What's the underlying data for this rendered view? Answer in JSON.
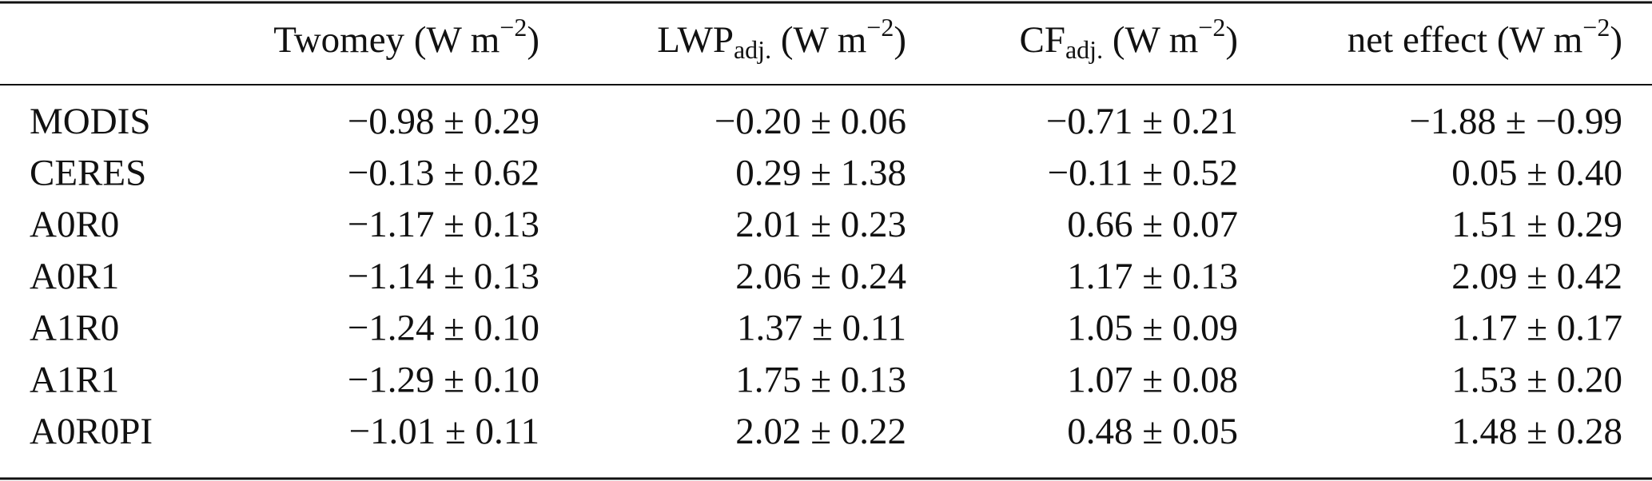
{
  "table": {
    "header": [
      {
        "main": "Twomey",
        "unit": " (W m",
        "sup": "−2",
        "close": ")"
      },
      {
        "main": "LWP",
        "sub": "adj.",
        "unit": " (W m",
        "sup": "−2",
        "close": ")"
      },
      {
        "main": "CF",
        "sub": "adj.",
        "unit": " (W m",
        "sup": "−2",
        "close": ")"
      },
      {
        "main": "net effect",
        "unit": " (W m",
        "sup": "−2",
        "close": ")"
      }
    ],
    "rows": [
      [
        "MODIS",
        "−0.98 ± 0.29",
        "−0.20 ± 0.06",
        "−0.71 ± 0.21",
        "−1.88 ± −0.99"
      ],
      [
        "CERES",
        "−0.13 ± 0.62",
        "0.29 ± 1.38",
        "−0.11 ± 0.52",
        "0.05 ± 0.40"
      ],
      [
        "A0R0",
        "−1.17 ± 0.13",
        "2.01 ± 0.23",
        "0.66 ± 0.07",
        "1.51 ± 0.29"
      ],
      [
        "A0R1",
        "−1.14 ± 0.13",
        "2.06 ± 0.24",
        "1.17 ± 0.13",
        "2.09 ± 0.42"
      ],
      [
        "A1R0",
        "−1.24 ± 0.10",
        "1.37 ± 0.11",
        "1.05 ± 0.09",
        "1.17 ± 0.17"
      ],
      [
        "A1R1",
        "−1.29 ± 0.10",
        "1.75 ± 0.13",
        "1.07 ± 0.08",
        "1.53 ± 0.20"
      ],
      [
        "A0R0PI",
        "−1.01 ± 0.11",
        "2.02 ± 0.22",
        "0.48 ± 0.05",
        "1.48 ± 0.28"
      ]
    ]
  }
}
